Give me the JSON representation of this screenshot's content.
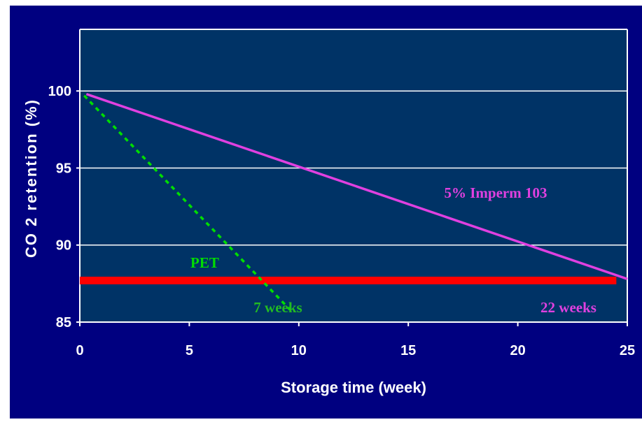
{
  "chart_data": {
    "type": "line",
    "xlabel": "Storage time (week)",
    "ylabel": "CO 2 retention (%)",
    "xlim": [
      0,
      25
    ],
    "ylim": [
      85,
      104
    ],
    "x_ticks": [
      "0",
      "5",
      "10",
      "15",
      "20",
      "25"
    ],
    "y_ticks": [
      "85",
      "90",
      "95",
      "100"
    ],
    "grid": "horizontal",
    "series": [
      {
        "name": "5% Imperm 103",
        "style": "solid",
        "color": "#e040e0",
        "points": [
          [
            0.3,
            99.8
          ],
          [
            25,
            87.8
          ]
        ]
      },
      {
        "name": "PET",
        "style": "dotted",
        "color": "#00dd00",
        "points": [
          [
            0.2,
            99.7
          ],
          [
            9.6,
            85.8
          ]
        ]
      }
    ],
    "threshold": {
      "y": 87.7,
      "x_range": [
        0,
        24.5
      ],
      "color": "#ff0000"
    },
    "annotations": [
      {
        "text": "5% Imperm 103",
        "color": "#e040e0"
      },
      {
        "text": "PET",
        "color": "#00dd00"
      },
      {
        "text": "7 weeks",
        "color": "#22bb22"
      },
      {
        "text": "22 weeks",
        "color": "#e040e0"
      }
    ],
    "colors": {
      "frame_bg": "#000080",
      "plot_bg": "#003366",
      "axis_text": "#ffffff"
    }
  }
}
